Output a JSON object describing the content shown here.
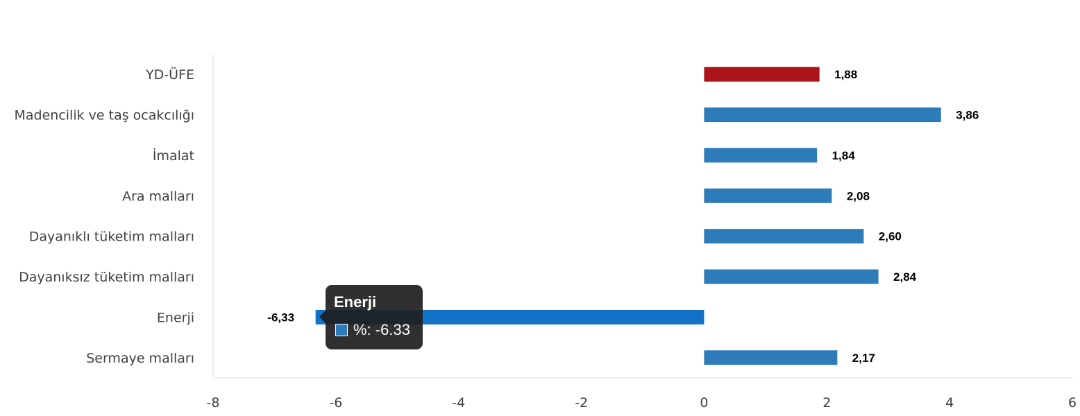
{
  "chart_data": {
    "type": "bar",
    "orientation": "horizontal",
    "categories": [
      "YD-ÜFE",
      "Madencilik ve taş ocakcılığı",
      "İmalat",
      "Ara malları",
      "Dayanıklı tüketim malları",
      "Dayanıksız tüketim malları",
      "Enerji",
      "Sermaye malları"
    ],
    "values": [
      1.88,
      3.86,
      1.84,
      2.08,
      2.6,
      2.84,
      -6.33,
      2.17
    ],
    "value_labels": [
      "1,88",
      "3,86",
      "1,84",
      "2,08",
      "2,60",
      "2,84",
      "-6,33",
      "2,17"
    ],
    "bar_colors": [
      "#ab1519",
      "#2e7bba",
      "#2e7bba",
      "#2e7bba",
      "#2e7bba",
      "#2e7bba",
      "#1272c8",
      "#2e7bba"
    ],
    "xlim": [
      -8,
      6
    ],
    "xticks": [
      -8,
      -6,
      -4,
      -2,
      0,
      2,
      4,
      6
    ],
    "title": "",
    "xlabel": "",
    "ylabel": "",
    "grid": false
  },
  "tooltip": {
    "title": "Enerji",
    "row_label": "%: -6.33",
    "swatch_color": "#2e7bba"
  }
}
